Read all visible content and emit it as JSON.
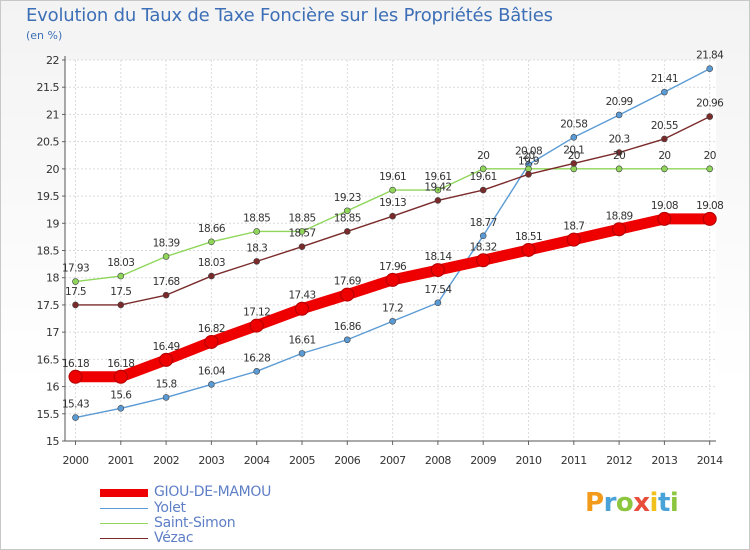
{
  "title": "Evolution du Taux de Taxe Foncière sur les Propriétés Bâties",
  "unit_label": "(en %)",
  "logo": {
    "text": "Proxiti",
    "colors": [
      "#f29a1a",
      "#4aa3d8",
      "#8cc63f",
      "#e84d3c",
      "#f2c01a",
      "#4aa3d8",
      "#8cc63f"
    ]
  },
  "chart_data": {
    "type": "line",
    "x": [
      "2000",
      "2001",
      "2002",
      "2003",
      "2004",
      "2005",
      "2006",
      "2007",
      "2008",
      "2009",
      "2010",
      "2011",
      "2012",
      "2013",
      "2014"
    ],
    "ylim": [
      15,
      22
    ],
    "yticks": [
      "15",
      "15.5",
      "16",
      "16.5",
      "17",
      "17.5",
      "18",
      "18.5",
      "19",
      "19.5",
      "20",
      "20.5",
      "21",
      "21.5",
      "22"
    ],
    "grid": true,
    "series": [
      {
        "name": "GIOU-DE-MAMOU",
        "color": "#ee0000",
        "emphasis": true,
        "values": [
          16.18,
          16.18,
          16.49,
          16.82,
          17.12,
          17.43,
          17.69,
          17.96,
          18.14,
          18.32,
          18.51,
          18.7,
          18.89,
          19.08,
          19.08
        ],
        "labels": [
          "16.18",
          "16.18",
          "16.49",
          "16.82",
          "17.12",
          "17.43",
          "17.69",
          "17.96",
          "18.14",
          "18.32",
          "18.51",
          "18.7",
          "18.89",
          "19.08",
          "19.08"
        ]
      },
      {
        "name": "Yolet",
        "color": "#5b9bd5",
        "emphasis": false,
        "values": [
          15.43,
          15.6,
          15.8,
          16.04,
          16.28,
          16.61,
          16.86,
          17.2,
          17.54,
          18.77,
          20.08,
          20.58,
          20.99,
          21.41,
          21.84
        ],
        "labels": [
          "15.43",
          "15.6",
          "15.8",
          "16.04",
          "16.28",
          "16.61",
          "16.86",
          "17.2",
          "17.54",
          "18.77",
          "20.08",
          "20.58",
          "20.99",
          "21.41",
          "21.84"
        ]
      },
      {
        "name": "Saint-Simon",
        "color": "#8fd65a",
        "emphasis": false,
        "values": [
          17.93,
          18.03,
          18.39,
          18.66,
          18.85,
          18.85,
          19.23,
          19.61,
          19.61,
          20,
          20,
          20,
          20,
          20,
          20
        ],
        "labels": [
          "17.93",
          "18.03",
          "18.39",
          "18.66",
          "18.85",
          "18.85",
          "19.23",
          "19.61",
          "19.61",
          "20",
          "20",
          "20",
          "20",
          "20",
          "20"
        ]
      },
      {
        "name": "Vézac",
        "color": "#7a2a2a",
        "emphasis": false,
        "values": [
          17.5,
          17.5,
          17.68,
          18.03,
          18.3,
          18.57,
          18.85,
          19.13,
          19.42,
          19.61,
          19.9,
          20.1,
          20.3,
          20.55,
          20.96
        ],
        "labels": [
          "17.5",
          "17.5",
          "17.68",
          "18.03",
          "18.3",
          "18.57",
          "18.85",
          "19.13",
          "19.42",
          "19.61",
          "19.9",
          "20.1",
          "20.3",
          "20.55",
          "20.96"
        ]
      }
    ]
  }
}
